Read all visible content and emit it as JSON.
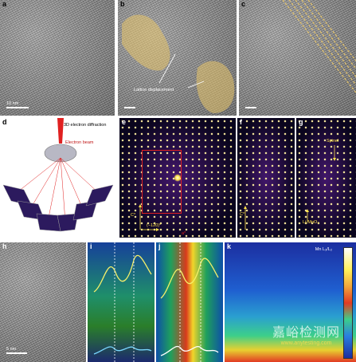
{
  "panels": {
    "a": {
      "label": "a",
      "scale_text": "10 nm"
    },
    "b": {
      "label": "b",
      "annotation": "Lattice displacement"
    },
    "c": {
      "label": "c"
    },
    "d": {
      "label": "d",
      "title": "3D electron diffraction",
      "beam": "Electron beam"
    },
    "e": {
      "label": "e",
      "axis_c": "C*",
      "axis_h": "(−120)*",
      "axis_a": "a*"
    },
    "f": {
      "label": "f",
      "axis_c": "C*"
    },
    "g": {
      "label": "g",
      "spinel": "Spinel",
      "phase": "Li₂MnO₃"
    },
    "h": {
      "label": "h",
      "scale_text": "5 nm"
    },
    "i": {
      "label": "i"
    },
    "j": {
      "label": "j"
    },
    "k": {
      "label": "k",
      "title": "Mn L₃/L₂"
    }
  },
  "watermark": {
    "cn": "嘉峪检测网",
    "url": "www.anytesting.com"
  },
  "colors": {
    "highlight": "#e7c56a",
    "red": "#e02020",
    "yellow": "#ffe34a",
    "teal": "#2ad4c8"
  }
}
